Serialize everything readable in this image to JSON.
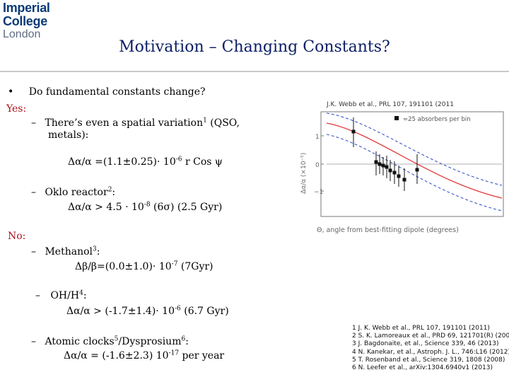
{
  "logo": {
    "line1": "Imperial College",
    "line2": "London"
  },
  "title": "Motivation – Changing Constants?",
  "question": {
    "bullet": "•",
    "text": "Do fundamental constants change?"
  },
  "yes_label": "Yes:",
  "no_label": "No:",
  "items": {
    "spatial": {
      "dash": "–",
      "line1": "There’s even a spatial variation",
      "sup": "1",
      "line1_tail": " (QSO,",
      "line2": "metals):"
    },
    "spatial_formula": {
      "text": "Δα/α =(1.1±0.25)· 10",
      "sup": "-6",
      "tail": " r Cos ψ"
    },
    "oklo": {
      "dash": "–",
      "text": "Oklo reactor",
      "sup": "2",
      "tail": ":"
    },
    "oklo_formula": {
      "text": "Δα/α > 4.5 · 10",
      "sup": "-8",
      "tail": " (6σ) (2.5 Gyr)"
    },
    "methanol": {
      "dash": "–",
      "text": "Methanol",
      "sup": "3",
      "tail": ":"
    },
    "methanol_formula": {
      "text": "Δβ/β=(0.0±1.0)· 10",
      "sup": "-7",
      "tail": " (7Gyr)"
    },
    "ohh": {
      "dash": "–",
      "text": "OH/H",
      "sup": "4",
      "tail": ":"
    },
    "ohh_formula": {
      "text": "Δα/α > (-1.7±1.4)· 10",
      "sup": "-6",
      "tail": " (6.7 Gyr)"
    },
    "clocks": {
      "dash": "–",
      "text": "Atomic clocks",
      "sup": "5",
      "mid": "/Dysprosium",
      "sup2": "6",
      "tail": ":"
    },
    "clocks_formula": {
      "text": "Δα/α = (-1.6±2.3) 10",
      "sup": "-17",
      "tail": " per year"
    }
  },
  "figure_citation": "J.K. Webb et al., PRL 107, 191101 (2011",
  "figure": {
    "ylabel": "Δα/α (×10⁻⁵)",
    "xlabel": "Θ, angle from best-fitting dipole (degrees)",
    "legend": "≈25 absorbers per bin",
    "ytick_labels": [
      "1",
      "0",
      "−1"
    ],
    "colors": {
      "fit": "#e03a3a",
      "bounds": "#3a56c8",
      "points": "#111111"
    }
  },
  "references": [
    "1 J. K. Webb et al., PRL 107, 191101 (2011)",
    "2 S. K. Lamoreaux et al., PRD 69, 121701(R) (2004)",
    "3 J. Bagdonaite, et al., Science 339, 46 (2013)",
    "4 N. Kanekar, et al., Astroph. J. L., 746:L16 (2012)",
    "5 T. Rosenband et al., Science 319, 1808 (2008)",
    "6 N. Leefer et al., arXiv:1304.6940v1 (2013)"
  ]
}
